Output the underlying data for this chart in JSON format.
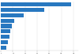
{
  "values": [
    116,
    72,
    38,
    22,
    18,
    16,
    14,
    12,
    9
  ],
  "bar_color": "#2878c0",
  "background_color": "#ffffff",
  "xlim": [
    0,
    128
  ]
}
